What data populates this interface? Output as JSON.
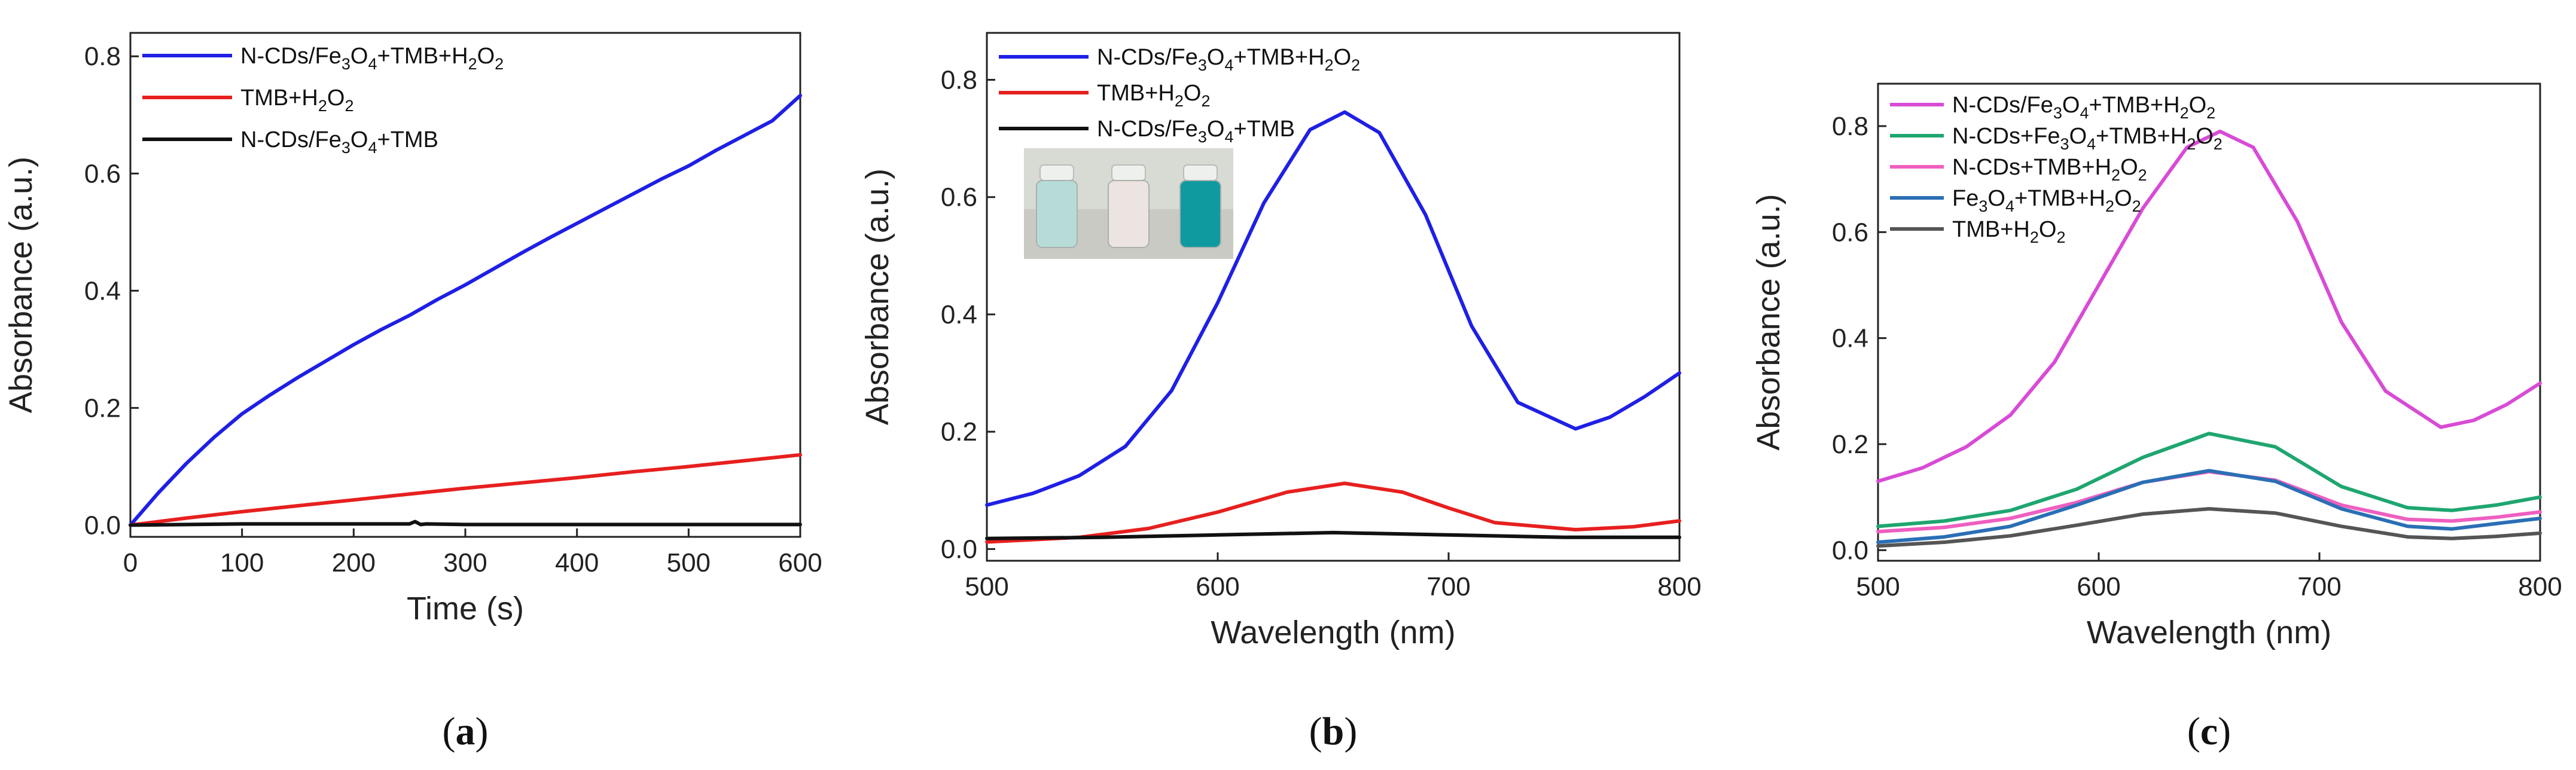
{
  "chart_data": [
    {
      "id": "a",
      "type": "line",
      "panel_label": "a",
      "xlabel": "Time (s)",
      "ylabel": "Absorbance (a.u.)",
      "xlim": [
        0,
        600
      ],
      "ylim": [
        -0.02,
        0.84
      ],
      "xticks": [
        0,
        100,
        200,
        300,
        400,
        500,
        600
      ],
      "yticks": [
        0.0,
        0.2,
        0.4,
        0.6,
        0.8
      ],
      "tick_decimals": [
        0,
        1
      ],
      "legend_position": "top-left",
      "series": [
        {
          "name": "N-CDs/Fe3O4+TMB+H2O2",
          "legend": [
            [
              "N-CDs/Fe",
              ""
            ],
            [
              "3",
              "sub"
            ],
            [
              "O",
              ""
            ],
            [
              "4",
              "sub"
            ],
            [
              "+TMB+H",
              ""
            ],
            [
              "2",
              "sub"
            ],
            [
              "O",
              ""
            ],
            [
              "2",
              "sub"
            ]
          ],
          "color": "#1f1fe6",
          "x": [
            0,
            25,
            50,
            75,
            100,
            125,
            150,
            175,
            200,
            225,
            250,
            275,
            300,
            325,
            350,
            375,
            400,
            425,
            450,
            475,
            500,
            525,
            550,
            575,
            600
          ],
          "y": [
            0.0,
            0.055,
            0.105,
            0.15,
            0.19,
            0.222,
            0.252,
            0.28,
            0.308,
            0.334,
            0.358,
            0.385,
            0.41,
            0.437,
            0.464,
            0.49,
            0.515,
            0.54,
            0.565,
            0.59,
            0.613,
            0.64,
            0.665,
            0.69,
            0.733
          ]
        },
        {
          "name": "TMB+H2O2",
          "legend": [
            [
              "TMB+H",
              ""
            ],
            [
              "2",
              "sub"
            ],
            [
              "O",
              ""
            ],
            [
              "2",
              "sub"
            ]
          ],
          "color": "#e6201f",
          "x": [
            0,
            50,
            100,
            150,
            200,
            250,
            300,
            350,
            400,
            450,
            500,
            550,
            600
          ],
          "y": [
            0.0,
            0.012,
            0.023,
            0.033,
            0.043,
            0.053,
            0.063,
            0.072,
            0.081,
            0.091,
            0.1,
            0.11,
            0.12
          ]
        },
        {
          "name": "N-CDs/Fe3O4+TMB",
          "legend": [
            [
              "N-CDs/Fe",
              ""
            ],
            [
              "3",
              "sub"
            ],
            [
              "O",
              ""
            ],
            [
              "4",
              "sub"
            ],
            [
              "+TMB",
              ""
            ]
          ],
          "color": "#111111",
          "x": [
            0,
            100,
            200,
            250,
            255,
            260,
            265,
            300,
            400,
            500,
            600
          ],
          "y": [
            0.0,
            0.002,
            0.002,
            0.002,
            0.006,
            0.001,
            0.002,
            0.001,
            0.001,
            0.001,
            0.001
          ]
        }
      ]
    },
    {
      "id": "b",
      "type": "line",
      "panel_label": "b",
      "xlabel": "Wavelength (nm)",
      "ylabel": "Absorbance (a.u.)",
      "xlim": [
        500,
        800
      ],
      "ylim": [
        -0.02,
        0.88
      ],
      "xticks": [
        500,
        600,
        700,
        800
      ],
      "yticks": [
        0.0,
        0.2,
        0.4,
        0.6,
        0.8
      ],
      "tick_decimals": [
        0,
        1
      ],
      "legend_position": "top-left",
      "inset": "photo of three vials (left: pale blue, middle: colorless, right: deep blue)",
      "series": [
        {
          "name": "N-CDs/Fe3O4+TMB+H2O2",
          "legend": [
            [
              "N-CDs/Fe",
              ""
            ],
            [
              "3",
              "sub"
            ],
            [
              "O",
              ""
            ],
            [
              "4",
              "sub"
            ],
            [
              "+TMB+H",
              ""
            ],
            [
              "2",
              "sub"
            ],
            [
              "O",
              ""
            ],
            [
              "2",
              "sub"
            ]
          ],
          "color": "#1f1fe6",
          "x": [
            500,
            520,
            540,
            560,
            580,
            600,
            620,
            640,
            655,
            670,
            690,
            710,
            730,
            755,
            770,
            785,
            800
          ],
          "y": [
            0.075,
            0.095,
            0.125,
            0.175,
            0.27,
            0.42,
            0.59,
            0.715,
            0.745,
            0.71,
            0.57,
            0.38,
            0.25,
            0.205,
            0.225,
            0.26,
            0.3
          ]
        },
        {
          "name": "TMB+H2O2",
          "legend": [
            [
              "TMB+H",
              ""
            ],
            [
              "2",
              "sub"
            ],
            [
              "O",
              ""
            ],
            [
              "2",
              "sub"
            ]
          ],
          "color": "#e6201f",
          "x": [
            500,
            540,
            570,
            600,
            630,
            655,
            680,
            700,
            720,
            755,
            780,
            800
          ],
          "y": [
            0.012,
            0.02,
            0.035,
            0.063,
            0.097,
            0.112,
            0.097,
            0.07,
            0.045,
            0.033,
            0.038,
            0.048
          ]
        },
        {
          "name": "N-CDs/Fe3O4+TMB",
          "legend": [
            [
              "N-CDs/Fe",
              ""
            ],
            [
              "3",
              "sub"
            ],
            [
              "O",
              ""
            ],
            [
              "4",
              "sub"
            ],
            [
              "+TMB",
              ""
            ]
          ],
          "color": "#111111",
          "x": [
            500,
            550,
            600,
            650,
            700,
            750,
            800
          ],
          "y": [
            0.018,
            0.02,
            0.024,
            0.028,
            0.024,
            0.02,
            0.02
          ]
        }
      ]
    },
    {
      "id": "c",
      "type": "line",
      "panel_label": "c",
      "xlabel": "Wavelength (nm)",
      "ylabel": "Absorbance (a.u.)",
      "xlim": [
        500,
        800
      ],
      "ylim": [
        -0.02,
        0.88
      ],
      "xticks": [
        500,
        600,
        700,
        800
      ],
      "yticks": [
        0.0,
        0.2,
        0.4,
        0.6,
        0.8
      ],
      "tick_decimals": [
        0,
        1
      ],
      "legend_position": "top-left",
      "series": [
        {
          "name": "N-CDs/Fe3O4+TMB+H2O2",
          "legend": [
            [
              "N-CDs/Fe",
              ""
            ],
            [
              "3",
              "sub"
            ],
            [
              "O",
              ""
            ],
            [
              "4",
              "sub"
            ],
            [
              "+TMB+H",
              ""
            ],
            [
              "2",
              "sub"
            ],
            [
              "O",
              ""
            ],
            [
              "2",
              "sub"
            ]
          ],
          "color": "#d84bd6",
          "x": [
            500,
            520,
            540,
            560,
            580,
            600,
            620,
            640,
            655,
            670,
            690,
            710,
            730,
            755,
            770,
            785,
            800
          ],
          "y": [
            0.13,
            0.155,
            0.195,
            0.255,
            0.355,
            0.5,
            0.645,
            0.76,
            0.79,
            0.76,
            0.62,
            0.43,
            0.3,
            0.232,
            0.245,
            0.275,
            0.315
          ]
        },
        {
          "name": "N-CDs+Fe3O4+TMB+H2O2",
          "legend": [
            [
              "N-CDs+Fe",
              ""
            ],
            [
              "3",
              "sub"
            ],
            [
              "O",
              ""
            ],
            [
              "4",
              "sub"
            ],
            [
              "+TMB+H",
              ""
            ],
            [
              "2",
              "sub"
            ],
            [
              "O",
              ""
            ],
            [
              "2",
              "sub"
            ]
          ],
          "color": "#1fa670",
          "x": [
            500,
            530,
            560,
            590,
            620,
            650,
            680,
            710,
            740,
            760,
            780,
            800
          ],
          "y": [
            0.045,
            0.055,
            0.075,
            0.115,
            0.175,
            0.22,
            0.195,
            0.12,
            0.08,
            0.075,
            0.085,
            0.1
          ]
        },
        {
          "name": "N-CDs+TMB+H2O2",
          "legend": [
            [
              "N-CDs+TMB+H",
              ""
            ],
            [
              "2",
              "sub"
            ],
            [
              "O",
              ""
            ],
            [
              "2",
              "sub"
            ]
          ],
          "color": "#ee5fc0",
          "x": [
            500,
            530,
            560,
            590,
            620,
            650,
            680,
            710,
            740,
            760,
            780,
            800
          ],
          "y": [
            0.035,
            0.043,
            0.06,
            0.09,
            0.128,
            0.148,
            0.132,
            0.085,
            0.058,
            0.055,
            0.062,
            0.072
          ]
        },
        {
          "name": "Fe3O4+TMB+H2O2",
          "legend": [
            [
              "Fe",
              ""
            ],
            [
              "3",
              "sub"
            ],
            [
              "O",
              ""
            ],
            [
              "4",
              "sub"
            ],
            [
              "+TMB+H",
              ""
            ],
            [
              "2",
              "sub"
            ],
            [
              "O",
              ""
            ],
            [
              "2",
              "sub"
            ]
          ],
          "color": "#2a6fb5",
          "x": [
            500,
            530,
            560,
            590,
            620,
            650,
            680,
            710,
            740,
            760,
            780,
            800
          ],
          "y": [
            0.015,
            0.025,
            0.045,
            0.085,
            0.128,
            0.15,
            0.13,
            0.078,
            0.045,
            0.04,
            0.05,
            0.06
          ]
        },
        {
          "name": "TMB+H2O2",
          "legend": [
            [
              "TMB+H",
              ""
            ],
            [
              "2",
              "sub"
            ],
            [
              "O",
              ""
            ],
            [
              "2",
              "sub"
            ]
          ],
          "color": "#555555",
          "x": [
            500,
            530,
            560,
            590,
            620,
            650,
            680,
            710,
            740,
            760,
            780,
            800
          ],
          "y": [
            0.008,
            0.015,
            0.027,
            0.047,
            0.068,
            0.078,
            0.07,
            0.045,
            0.025,
            0.022,
            0.026,
            0.032
          ]
        }
      ]
    }
  ]
}
